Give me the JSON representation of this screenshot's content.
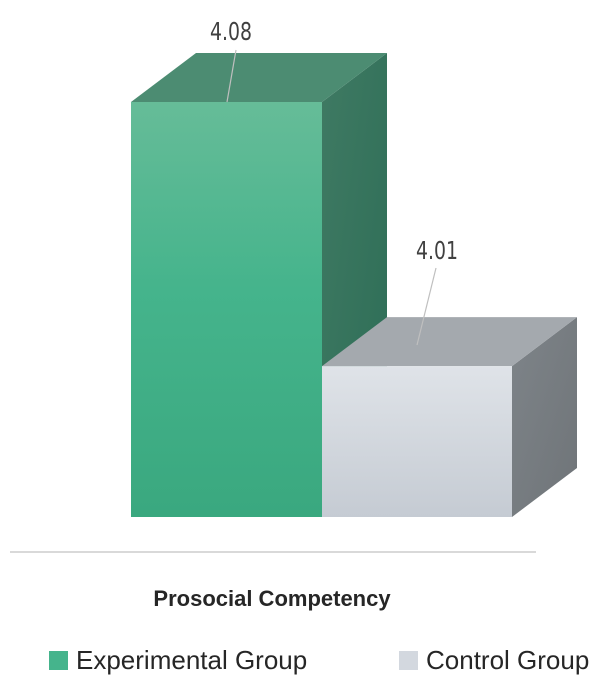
{
  "chart_data": {
    "type": "bar",
    "style": "3d",
    "categories": [
      "Prosocial Competency"
    ],
    "series": [
      {
        "name": "Experimental Group",
        "values": [
          4.08
        ],
        "color": "#45B48C"
      },
      {
        "name": "Control Group",
        "values": [
          4.01
        ],
        "color": "#D3D8DF"
      }
    ],
    "data_labels": [
      "4.08",
      "4.01"
    ],
    "xlabel": "Prosocial Competency",
    "ylabel": "",
    "ylim": [
      3.97,
      4.08
    ],
    "grid": false,
    "legend_position": "bottom"
  },
  "axis": {
    "line_color": "#D9D9D9"
  }
}
